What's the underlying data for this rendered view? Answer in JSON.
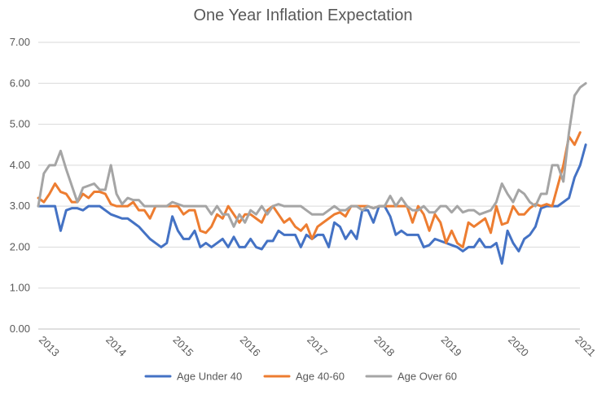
{
  "chart_data": {
    "type": "line",
    "title": "One Year Inflation Expectation",
    "xlabel": "",
    "ylabel": "",
    "ylim": [
      0,
      7
    ],
    "yticks": [
      "0.00",
      "1.00",
      "2.00",
      "3.00",
      "4.00",
      "5.00",
      "6.00",
      "7.00"
    ],
    "xticks": [
      {
        "label": "2013",
        "x": 2013
      },
      {
        "label": "2014",
        "x": 2014
      },
      {
        "label": "2015",
        "x": 2015
      },
      {
        "label": "2016",
        "x": 2016
      },
      {
        "label": "2017",
        "x": 2017
      },
      {
        "label": "2018",
        "x": 2018
      },
      {
        "label": "2019",
        "x": 2019
      },
      {
        "label": "2020",
        "x": 2020
      },
      {
        "label": "2021",
        "x": 2021
      }
    ],
    "x_start": 2013.0,
    "x_step": 0.08333,
    "xlim": [
      2013.0,
      2021.08
    ],
    "grid": "horizontal",
    "legend_position": "bottom",
    "series": [
      {
        "name": "Age Under 40",
        "color": "#4472C4",
        "values": [
          3.0,
          3.0,
          3.0,
          3.0,
          2.4,
          2.9,
          2.95,
          2.95,
          2.9,
          3.0,
          3.0,
          3.0,
          2.9,
          2.8,
          2.75,
          2.7,
          2.7,
          2.6,
          2.5,
          2.35,
          2.2,
          2.1,
          2.0,
          2.1,
          2.75,
          2.4,
          2.2,
          2.2,
          2.4,
          2.0,
          2.1,
          2.0,
          2.1,
          2.2,
          2.0,
          2.25,
          2.0,
          2.0,
          2.2,
          2.0,
          1.95,
          2.15,
          2.15,
          2.4,
          2.3,
          2.3,
          2.3,
          2.0,
          2.3,
          2.2,
          2.3,
          2.3,
          2.0,
          2.6,
          2.5,
          2.2,
          2.4,
          2.2,
          2.9,
          2.9,
          2.6,
          3.0,
          3.0,
          2.75,
          2.3,
          2.4,
          2.3,
          2.3,
          2.3,
          2.0,
          2.05,
          2.2,
          2.15,
          2.1,
          2.05,
          2.0,
          1.9,
          2.0,
          2.0,
          2.2,
          2.0,
          2.0,
          2.1,
          1.6,
          2.4,
          2.1,
          1.9,
          2.2,
          2.3,
          2.5,
          2.95,
          3.0,
          3.0,
          3.0,
          3.1,
          3.2,
          3.7,
          4.0,
          4.5
        ]
      },
      {
        "name": "Age 40-60",
        "color": "#ED7D31",
        "values": [
          3.2,
          3.1,
          3.3,
          3.55,
          3.35,
          3.3,
          3.1,
          3.1,
          3.3,
          3.2,
          3.35,
          3.35,
          3.3,
          3.05,
          3.0,
          3.0,
          3.0,
          3.1,
          2.9,
          2.9,
          2.7,
          3.0,
          3.0,
          3.0,
          3.0,
          3.0,
          2.8,
          2.9,
          2.9,
          2.4,
          2.35,
          2.5,
          2.8,
          2.7,
          3.0,
          2.8,
          2.6,
          2.8,
          2.8,
          2.7,
          2.6,
          2.9,
          3.0,
          2.8,
          2.6,
          2.7,
          2.5,
          2.4,
          2.55,
          2.2,
          2.5,
          2.6,
          2.7,
          2.8,
          2.85,
          2.75,
          3.0,
          3.0,
          3.0,
          3.0,
          2.95,
          3.0,
          3.0,
          3.0,
          3.0,
          3.0,
          3.0,
          2.6,
          3.0,
          2.8,
          2.4,
          2.8,
          2.6,
          2.1,
          2.4,
          2.1,
          2.0,
          2.6,
          2.5,
          2.6,
          2.7,
          2.35,
          3.0,
          2.55,
          2.6,
          3.0,
          2.8,
          2.8,
          2.95,
          3.05,
          3.0,
          3.05,
          3.0,
          3.5,
          4.0,
          4.7,
          4.5,
          4.8
        ]
      },
      {
        "name": "Age Over 60",
        "color": "#A5A5A5",
        "values": [
          3.0,
          3.8,
          4.0,
          4.0,
          4.35,
          3.9,
          3.5,
          3.1,
          3.45,
          3.5,
          3.55,
          3.4,
          3.4,
          4.0,
          3.3,
          3.05,
          3.2,
          3.15,
          3.15,
          3.0,
          3.0,
          3.0,
          3.0,
          3.0,
          3.1,
          3.05,
          3.0,
          3.0,
          3.0,
          3.0,
          3.0,
          2.8,
          3.0,
          2.8,
          2.8,
          2.5,
          2.8,
          2.6,
          2.9,
          2.8,
          3.0,
          2.8,
          3.0,
          3.05,
          3.0,
          3.0,
          3.0,
          3.0,
          2.9,
          2.8,
          2.8,
          2.8,
          2.9,
          3.0,
          2.9,
          2.9,
          3.0,
          3.0,
          2.9,
          3.0,
          2.95,
          3.0,
          3.0,
          3.25,
          3.0,
          3.2,
          3.0,
          2.9,
          2.9,
          3.0,
          2.85,
          2.85,
          3.0,
          3.0,
          2.85,
          3.0,
          2.85,
          2.9,
          2.9,
          2.8,
          2.85,
          2.9,
          3.1,
          3.55,
          3.3,
          3.1,
          3.4,
          3.3,
          3.1,
          3.0,
          3.3,
          3.3,
          4.0,
          4.0,
          3.6,
          4.8,
          5.7,
          5.9,
          6.0
        ]
      }
    ]
  }
}
